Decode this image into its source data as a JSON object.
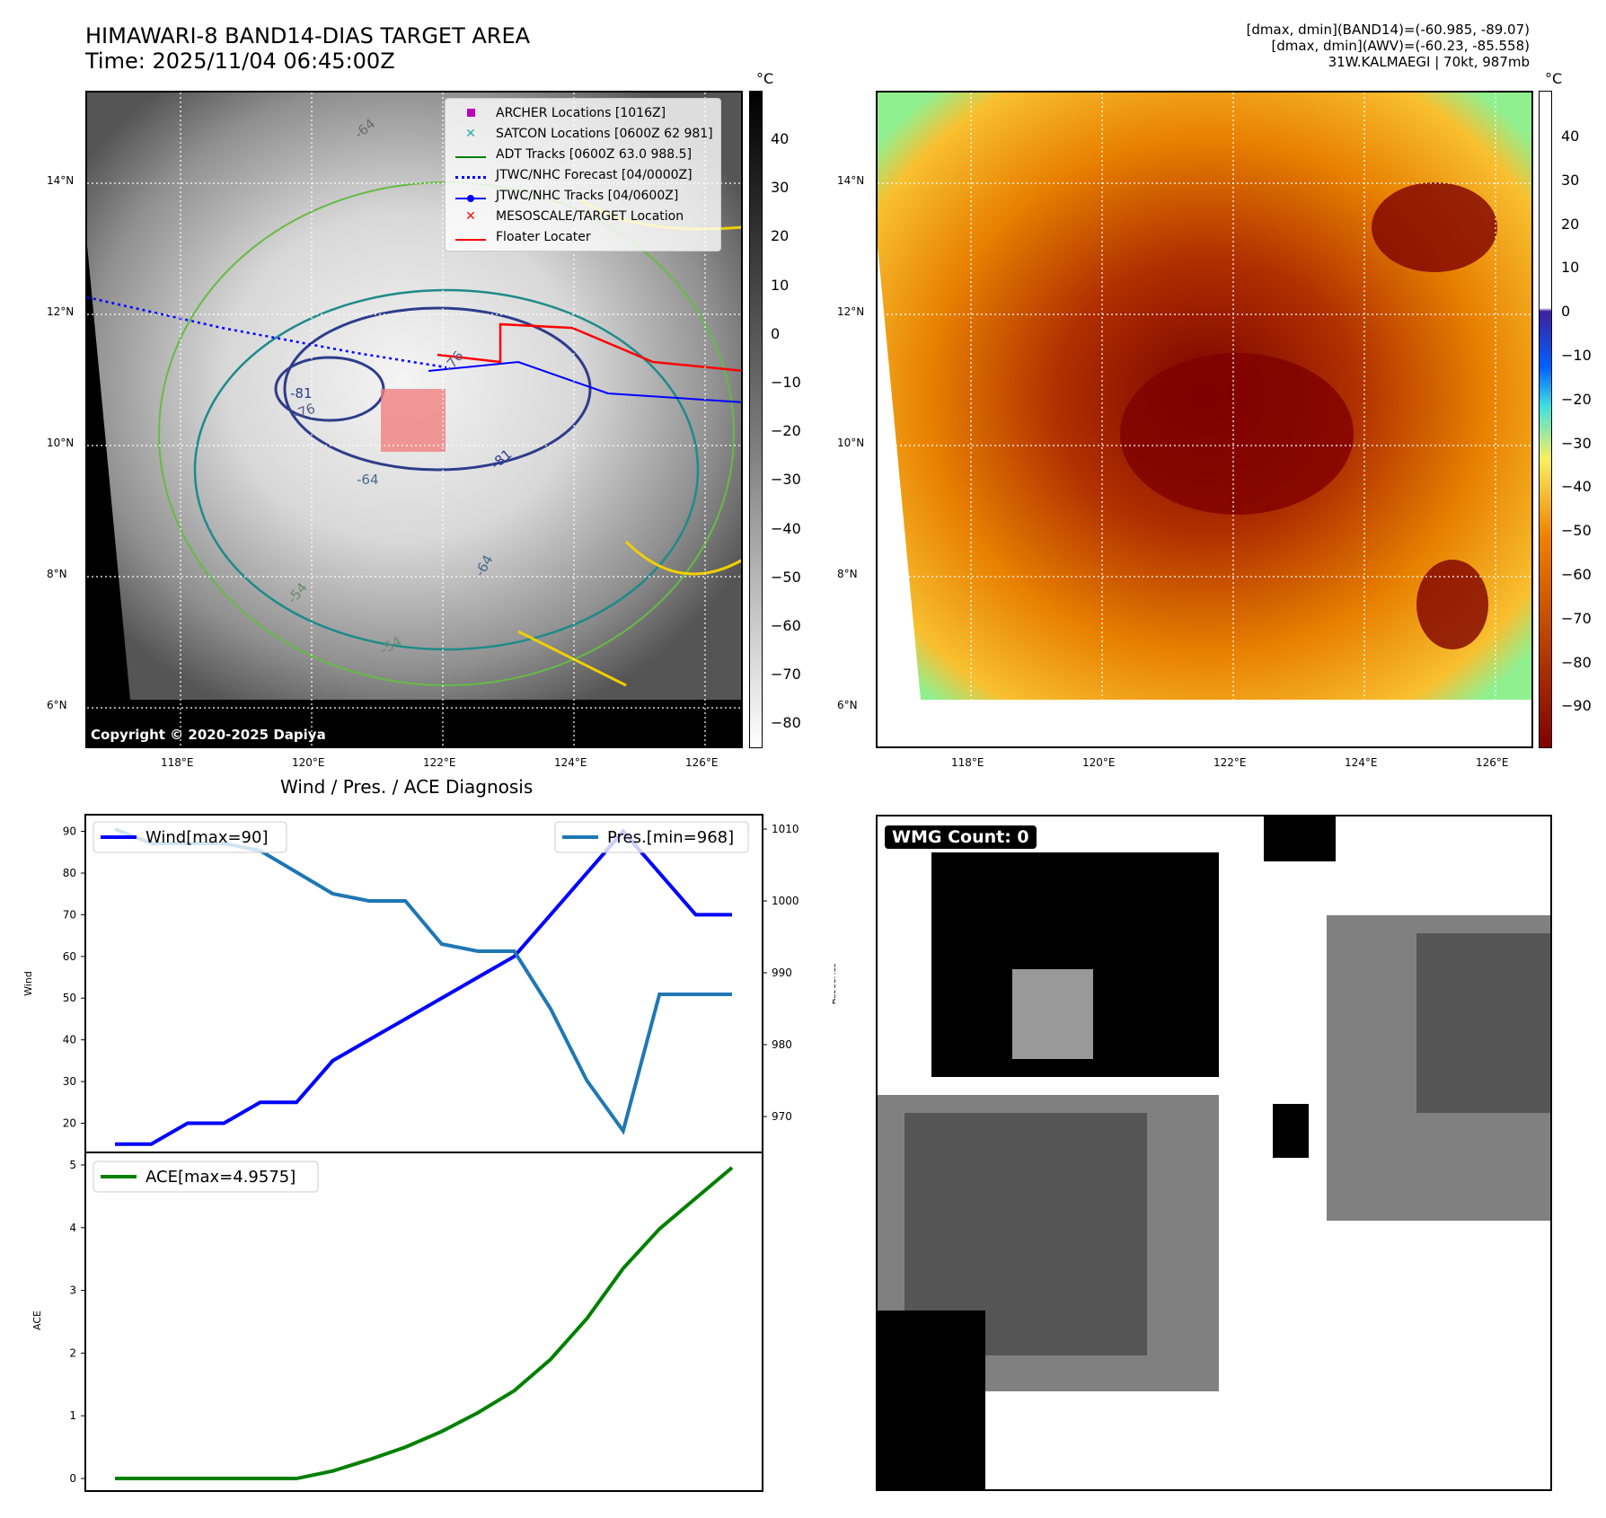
{
  "left_map": {
    "title_line1": "HIMAWARI-8 BAND14-DIAS TARGET AREA",
    "title_line2": "Time: 2025/11/04 06:45:00Z",
    "legend": [
      {
        "label": "ARCHER Locations [1016Z]",
        "color": "#c000c0",
        "symbol": "square"
      },
      {
        "label": "SATCON Locations [0600Z 62 981]",
        "color": "#20b0b0",
        "symbol": "x"
      },
      {
        "label": "ADT Tracks [0600Z 63.0 988.5]",
        "color": "#008000",
        "symbol": "line"
      },
      {
        "label": "JTWC/NHC Forecast [04/0000Z]",
        "color": "#0000ff",
        "symbol": "dotted"
      },
      {
        "label": "JTWC/NHC Tracks [04/0600Z]",
        "color": "#0000ff",
        "symbol": "line-dot"
      },
      {
        "label": "MESOSCALE/TARGET Location",
        "color": "#ff0000",
        "symbol": "x"
      },
      {
        "label": "Floater Locater",
        "color": "#ff0000",
        "symbol": "line"
      }
    ],
    "copyright": "Copyright © 2020-2025 Dapiya",
    "colorbar_unit": "°C",
    "colorbar_ticks": [
      "40",
      "30",
      "20",
      "10",
      "0",
      "−10",
      "−20",
      "−30",
      "−40",
      "−50",
      "−60",
      "−70",
      "−80"
    ],
    "lat_labels": [
      "14°N",
      "12°N",
      "10°N",
      "8°N",
      "6°N"
    ],
    "lon_labels": [
      "118°E",
      "120°E",
      "122°E",
      "124°E",
      "126°E"
    ],
    "contour_labels": [
      "-64",
      "-81",
      "-76",
      "-64",
      "-54",
      "-54",
      "-81",
      "-76",
      "-64"
    ]
  },
  "right_map": {
    "info_line1": "[dmax, dmin](BAND14)=(-60.985, -89.07)",
    "info_line2": "[dmax, dmin](AWV)=(-60.23, -85.558)",
    "info_line3": "31W.KALMAEGI | 70kt, 987mb",
    "colorbar_unit": "°C",
    "colorbar_ticks": [
      "40",
      "30",
      "20",
      "10",
      "0",
      "−10",
      "−20",
      "−30",
      "−40",
      "−50",
      "−60",
      "−70",
      "−80",
      "−90"
    ],
    "lat_labels": [
      "14°N",
      "12°N",
      "10°N",
      "8°N",
      "6°N"
    ],
    "lon_labels": [
      "118°E",
      "120°E",
      "122°E",
      "124°E",
      "126°E"
    ]
  },
  "wmg": {
    "label": "WMG Count: 0"
  },
  "chart_data": [
    {
      "type": "line",
      "title": "Wind / Pres. / ACE Diagnosis",
      "ylabel": "Wind",
      "y2label": "Pressure",
      "ylim": [
        13,
        94
      ],
      "y2lim": [
        965,
        1012
      ],
      "yticks": [
        "20",
        "30",
        "40",
        "50",
        "60",
        "70",
        "80",
        "90"
      ],
      "y2ticks": [
        "970",
        "980",
        "990",
        "1000",
        "1010"
      ],
      "series": [
        {
          "name": "Wind[max=90]",
          "color": "#0000ff",
          "axis": "left",
          "values": [
            15,
            15,
            20,
            20,
            25,
            25,
            35,
            40,
            45,
            50,
            55,
            60,
            70,
            80,
            90,
            80,
            70,
            70
          ]
        },
        {
          "name": "Pres.[min=968]",
          "color": "#1f77b4",
          "axis": "right",
          "values": [
            1010,
            1008,
            1008,
            1008,
            1007,
            1004,
            1001,
            1000,
            1000,
            994,
            993,
            993,
            985,
            975,
            968,
            987,
            987,
            987
          ]
        }
      ]
    },
    {
      "type": "line",
      "ylabel": "ACE",
      "ylim": [
        -0.2,
        5.2
      ],
      "yticks": [
        "0",
        "1",
        "2",
        "3",
        "4",
        "5"
      ],
      "series": [
        {
          "name": "ACE[max=4.9575]",
          "color": "#008000",
          "values": [
            0,
            0,
            0,
            0,
            0,
            0,
            0.12,
            0.3,
            0.5,
            0.75,
            1.05,
            1.4,
            1.9,
            2.55,
            3.35,
            3.98,
            4.47,
            4.9575
          ]
        }
      ]
    }
  ]
}
